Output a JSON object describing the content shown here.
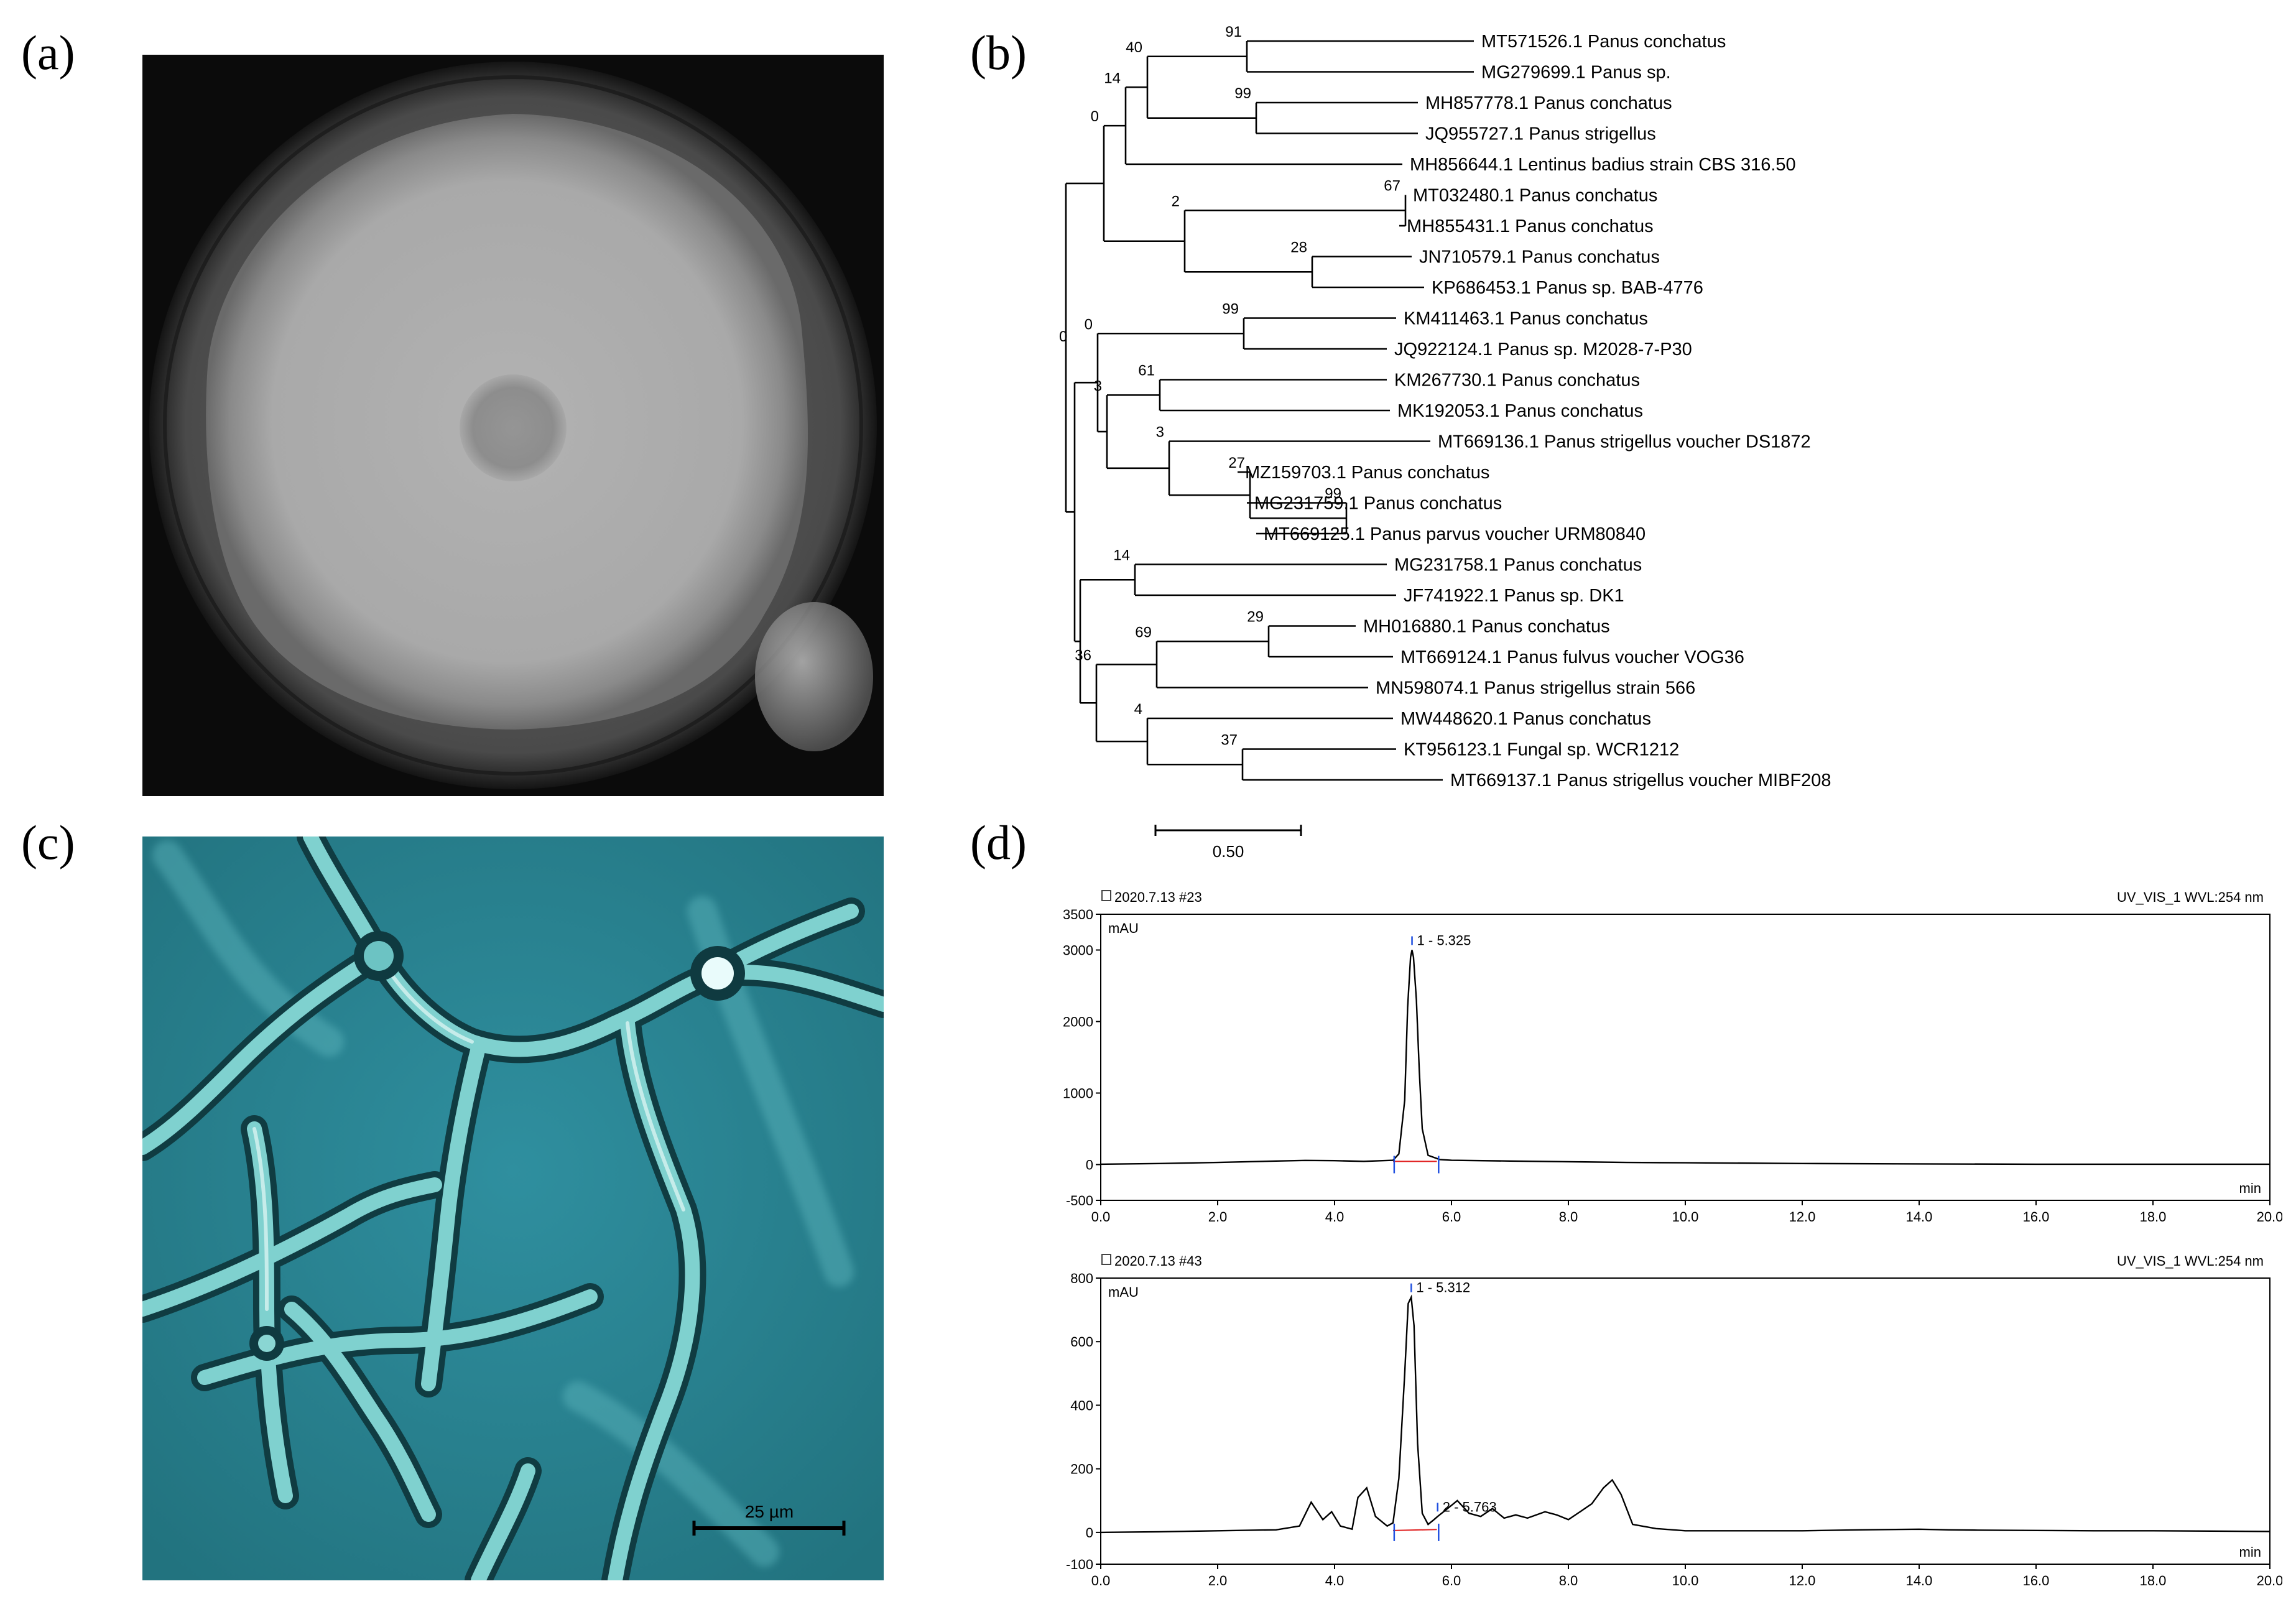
{
  "panels": {
    "a": {
      "label": "(a)"
    },
    "b": {
      "label": "(b)"
    },
    "c": {
      "label": "(c)"
    },
    "d": {
      "label": "(d)"
    }
  },
  "micro_scale": "25 µm",
  "tree": {
    "scale_label": "0.50",
    "taxa": [
      "MT571526.1 Panus conchatus",
      "MG279699.1 Panus sp.",
      "MH857778.1 Panus conchatus",
      "JQ955727.1 Panus strigellus",
      "MH856644.1 Lentinus badius strain CBS 316.50",
      "MT032480.1 Panus conchatus",
      "MH855431.1 Panus conchatus",
      "JN710579.1 Panus conchatus",
      "KP686453.1 Panus sp. BAB-4776",
      "KM411463.1 Panus conchatus",
      "JQ922124.1 Panus sp. M2028-7-P30",
      "KM267730.1 Panus conchatus",
      "MK192053.1 Panus conchatus",
      "MT669136.1 Panus strigellus voucher DS1872",
      "MZ159703.1 Panus conchatus",
      "MG231759.1 Panus conchatus",
      "MT669125.1 Panus parvus voucher URM80840",
      "MG231758.1 Panus conchatus",
      "JF741922.1 Panus sp. DK1",
      "MH016880.1 Panus conchatus",
      "MT669124.1 Panus fulvus voucher VOG36",
      "MN598074.1 Panus strigellus strain 566",
      "MW448620.1 Panus conchatus",
      "KT956123.1 Fungal sp. WCR1212",
      "MT669137.1 Panus strigellus voucher MIBF208"
    ],
    "bootstrap": [
      "91",
      "40",
      "99",
      "14",
      "0",
      "67",
      "2",
      "28",
      "0",
      "99",
      "3",
      "61",
      "3",
      "27",
      "99",
      "14",
      "29",
      "69",
      "36",
      "4",
      "37",
      "99"
    ]
  },
  "chart_data": [
    {
      "type": "line",
      "header_left": "2020.7.13 #23",
      "header_right": "UV_VIS_1 WVL:254 nm",
      "ylabel": "mAU",
      "xlabel": "min",
      "xlim": [
        0,
        20
      ],
      "ylim": [
        -500,
        3500
      ],
      "xticks": [
        "0.0",
        "2.0",
        "4.0",
        "6.0",
        "8.0",
        "10.0",
        "12.0",
        "14.0",
        "16.0",
        "18.0",
        "20.0"
      ],
      "yticks": [
        "3500",
        "3000",
        "2000",
        "1000",
        "0",
        "-500"
      ],
      "peaks": [
        {
          "label": "1 - 5.325",
          "x": 5.325,
          "y": 3000
        }
      ],
      "x": [
        0,
        1,
        2,
        3,
        3.5,
        4,
        4.5,
        5,
        5.1,
        5.2,
        5.25,
        5.3,
        5.325,
        5.35,
        5.4,
        5.45,
        5.5,
        5.6,
        5.8,
        6,
        7,
        8,
        9,
        10,
        12,
        14,
        16,
        18,
        20
      ],
      "y": [
        5,
        15,
        30,
        50,
        58,
        55,
        45,
        60,
        150,
        900,
        2200,
        2900,
        3000,
        2900,
        2300,
        1300,
        500,
        130,
        70,
        60,
        50,
        40,
        30,
        25,
        15,
        10,
        5,
        5,
        5
      ]
    },
    {
      "type": "line",
      "header_left": "2020.7.13 #43",
      "header_right": "UV_VIS_1 WVL:254 nm",
      "ylabel": "mAU",
      "xlabel": "min",
      "xlim": [
        0,
        20
      ],
      "ylim": [
        -100,
        800
      ],
      "xticks": [
        "0.0",
        "2.0",
        "4.0",
        "6.0",
        "8.0",
        "10.0",
        "12.0",
        "14.0",
        "16.0",
        "18.0",
        "20.0"
      ],
      "yticks": [
        "800",
        "600",
        "400",
        "200",
        "0",
        "-100"
      ],
      "peaks": [
        {
          "label": "1 - 5.312",
          "x": 5.312,
          "y": 740
        },
        {
          "label": "2 - 5.763",
          "x": 5.763,
          "y": 50
        }
      ],
      "x": [
        0,
        1,
        2,
        3,
        3.4,
        3.6,
        3.8,
        3.95,
        4.1,
        4.3,
        4.4,
        4.55,
        4.7,
        4.9,
        5.0,
        5.1,
        5.2,
        5.26,
        5.312,
        5.36,
        5.42,
        5.5,
        5.6,
        5.7,
        5.763,
        5.9,
        6.1,
        6.3,
        6.5,
        6.7,
        6.9,
        7.1,
        7.3,
        7.6,
        7.8,
        8.0,
        8.2,
        8.4,
        8.6,
        8.75,
        8.9,
        9.1,
        9.5,
        10,
        11,
        12,
        13,
        14,
        14.5,
        15,
        16,
        17,
        18,
        19,
        20
      ],
      "y": [
        0,
        2,
        5,
        8,
        20,
        95,
        40,
        65,
        20,
        10,
        110,
        140,
        50,
        20,
        30,
        170,
        500,
        720,
        740,
        650,
        280,
        60,
        25,
        40,
        50,
        70,
        100,
        60,
        50,
        75,
        45,
        55,
        45,
        65,
        55,
        40,
        65,
        90,
        140,
        165,
        120,
        25,
        12,
        5,
        5,
        5,
        8,
        10,
        8,
        7,
        6,
        5,
        5,
        4,
        3
      ]
    }
  ]
}
